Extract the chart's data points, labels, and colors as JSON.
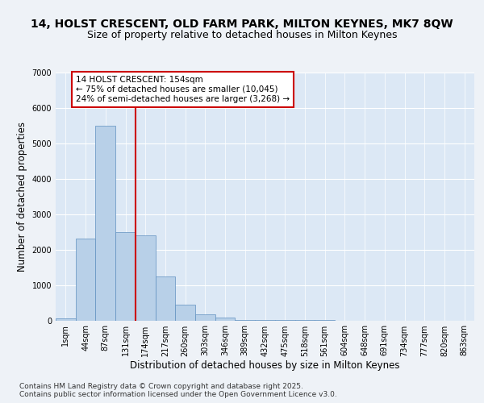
{
  "title_line1": "14, HOLST CRESCENT, OLD FARM PARK, MILTON KEYNES, MK7 8QW",
  "title_line2": "Size of property relative to detached houses in Milton Keynes",
  "xlabel": "Distribution of detached houses by size in Milton Keynes",
  "ylabel": "Number of detached properties",
  "bar_labels": [
    "1sqm",
    "44sqm",
    "87sqm",
    "131sqm",
    "174sqm",
    "217sqm",
    "260sqm",
    "303sqm",
    "346sqm",
    "389sqm",
    "432sqm",
    "475sqm",
    "518sqm",
    "561sqm",
    "604sqm",
    "648sqm",
    "691sqm",
    "734sqm",
    "777sqm",
    "820sqm",
    "863sqm"
  ],
  "bar_values": [
    55,
    2300,
    5500,
    2500,
    2400,
    1250,
    450,
    175,
    75,
    20,
    5,
    3,
    2,
    1,
    0,
    0,
    0,
    0,
    0,
    0,
    0
  ],
  "bar_color": "#b8d0e8",
  "bar_edge_color": "#6090c0",
  "vline_x": 3.5,
  "vline_color": "#cc0000",
  "annotation_box_text": "14 HOLST CRESCENT: 154sqm\n← 75% of detached houses are smaller (10,045)\n24% of semi-detached houses are larger (3,268) →",
  "annotation_box_color": "#cc0000",
  "ylim": [
    0,
    7000
  ],
  "yticks": [
    0,
    1000,
    2000,
    3000,
    4000,
    5000,
    6000,
    7000
  ],
  "bg_color": "#eef2f7",
  "plot_bg_color": "#dce8f5",
  "footer_text": "Contains HM Land Registry data © Crown copyright and database right 2025.\nContains public sector information licensed under the Open Government Licence v3.0.",
  "title_fontsize": 10,
  "subtitle_fontsize": 9,
  "axis_label_fontsize": 8.5,
  "tick_fontsize": 7,
  "footer_fontsize": 6.5
}
